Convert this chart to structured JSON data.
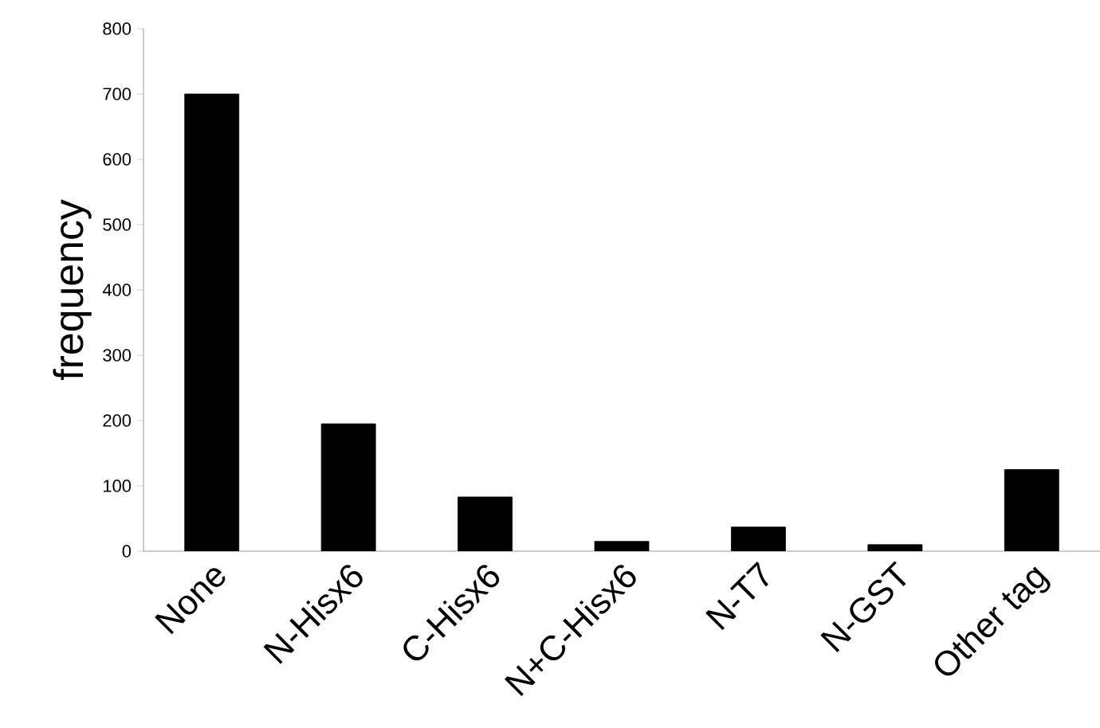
{
  "chart_data": {
    "type": "bar",
    "ylabel": "frequency",
    "categories": [
      "None",
      "N-Hisx6",
      "C-Hisx6",
      "N+C-Hisx6",
      "N-T7",
      "N-GST",
      "Other tag"
    ],
    "values": [
      700,
      195,
      83,
      15,
      37,
      10,
      125
    ],
    "color": "#000000",
    "ylim": [
      0,
      800
    ],
    "yticks": [
      0,
      100,
      200,
      300,
      400,
      500,
      600,
      700,
      800
    ],
    "grid": false
  }
}
